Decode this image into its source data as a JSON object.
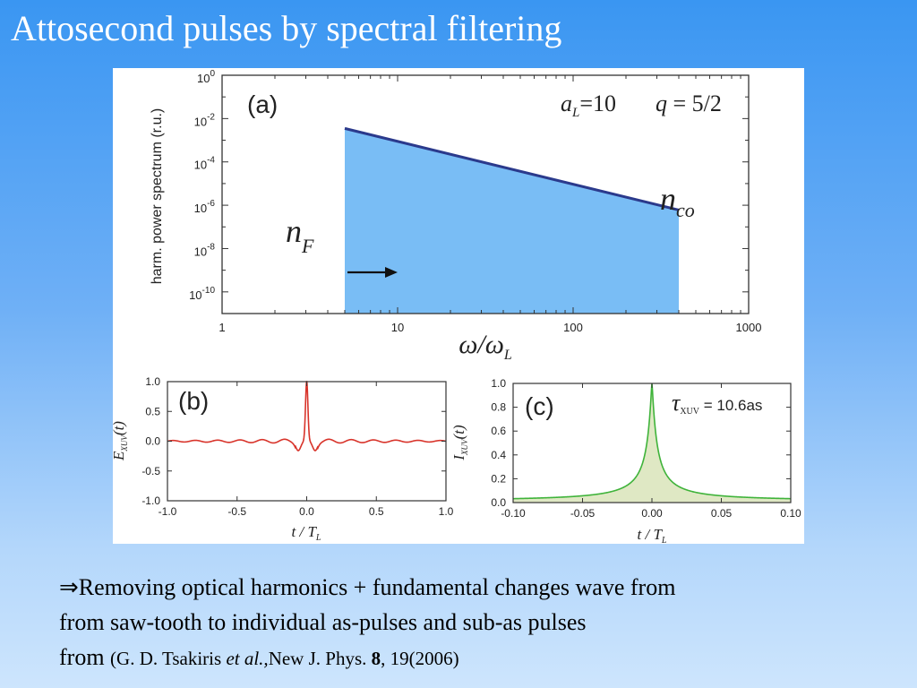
{
  "slide": {
    "title": "Attosecond pulses by spectral filtering"
  },
  "caption": {
    "arrow": "⇒",
    "line1": "Removing optical harmonics + fundamental changes wave from",
    "line2": "from saw-tooth to individual as-pulses and  sub-as pulses",
    "line3_prefix": "from ",
    "ref_authors": "(G. D. Tsakiris ",
    "ref_etal": "et al.,",
    "ref_journal": "New J. Phys. ",
    "ref_volume": "8",
    "ref_pages": ", 19(2006)"
  },
  "panels": {
    "a": {
      "label": "(a)",
      "param_aL": "a",
      "param_aL_sub": "L",
      "param_aL_val": "=10",
      "param_q": "q",
      "param_q_val": " = 5/2",
      "n_F": "n",
      "n_F_sub": "F",
      "n_co": "n",
      "n_co_sub": "co",
      "xlabel_main": "ω/ω",
      "xlabel_sub": "L",
      "ylabel": "harm. power spectrum (r.u.)",
      "xticks": [
        "1",
        "10",
        "100",
        "1000"
      ],
      "yticks": [
        {
          "base": "10",
          "exp": "0"
        },
        {
          "base": "10",
          "exp": "-2"
        },
        {
          "base": "10",
          "exp": "-4"
        },
        {
          "base": "10",
          "exp": "-6"
        },
        {
          "base": "10",
          "exp": "-8"
        },
        {
          "base": "10",
          "exp": "-10"
        }
      ]
    },
    "b": {
      "label": "(b)",
      "ylabel_main": "E",
      "ylabel_sub": "XUV",
      "ylabel_tail": "(t)",
      "xlabel_main": "t / T",
      "xlabel_sub": "L",
      "xticks": [
        "-1.0",
        "-0.5",
        "0.0",
        "0.5",
        "1.0"
      ],
      "yticks": [
        "1.0",
        "0.5",
        "0.0",
        "-0.5",
        "-1.0"
      ]
    },
    "c": {
      "label": "(c)",
      "tau_symbol": "τ",
      "tau_sub": "XUV",
      "tau_value": " = 10.6as",
      "ylabel_main": "I",
      "ylabel_sub": "XUV",
      "ylabel_tail": "(t)",
      "xlabel_main": "t / T",
      "xlabel_sub": "L",
      "xticks": [
        "-0.10",
        "-0.05",
        "0.00",
        "0.05",
        "0.10"
      ],
      "yticks": [
        "1.0",
        "0.8",
        "0.6",
        "0.4",
        "0.2",
        "0.0"
      ]
    }
  },
  "colors": {
    "spectrum_fill": "#79bdf5",
    "spectrum_line": "#2b3a8c",
    "field_line": "#d8332a",
    "intensity_line": "#3fb33a",
    "intensity_fill": "#dfe8c4"
  },
  "chart_data": [
    {
      "type": "area",
      "panel": "a",
      "xscale": "log",
      "yscale": "log",
      "xlim": [
        1,
        1000
      ],
      "ylim": [
        1e-11,
        1
      ],
      "x": [
        5,
        400
      ],
      "y": [
        0.0035,
        6e-07
      ],
      "cutoff_low": 5,
      "cutoff_high": 400
    },
    {
      "type": "line",
      "panel": "b",
      "xlim": [
        -1.0,
        1.0
      ],
      "ylim": [
        -1.0,
        1.0
      ],
      "grid": false,
      "peak": {
        "x": 0.0,
        "y": 1.0
      },
      "baseline": 0.0,
      "ripple_amplitude": 0.04
    },
    {
      "type": "area",
      "panel": "c",
      "xlim": [
        -0.1,
        0.1
      ],
      "ylim": [
        0.0,
        1.0
      ],
      "grid": false,
      "peak": {
        "x": 0.0,
        "y": 1.0
      },
      "baseline": 0.0
    }
  ]
}
